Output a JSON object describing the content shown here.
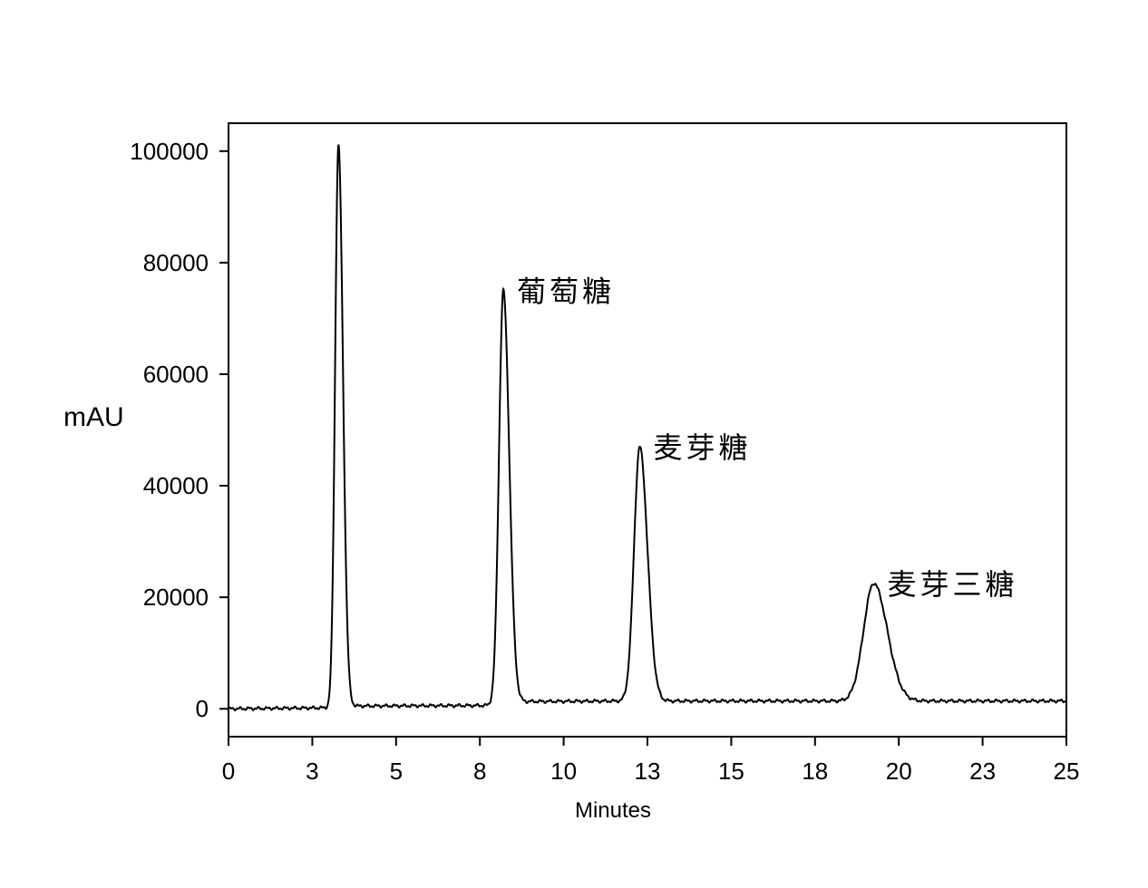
{
  "chart_data": {
    "type": "line",
    "title": "",
    "xlabel": "Minutes",
    "ylabel": "mAU",
    "xlim": [
      0,
      25
    ],
    "ylim": [
      -5000,
      105000
    ],
    "x_ticks": [
      {
        "value": 0,
        "label": "0"
      },
      {
        "value": 2.5,
        "label": "3"
      },
      {
        "value": 5,
        "label": "5"
      },
      {
        "value": 7.5,
        "label": "8"
      },
      {
        "value": 10,
        "label": "10"
      },
      {
        "value": 12.5,
        "label": "13"
      },
      {
        "value": 15,
        "label": "15"
      },
      {
        "value": 17.5,
        "label": "18"
      },
      {
        "value": 20,
        "label": "20"
      },
      {
        "value": 22.5,
        "label": "23"
      },
      {
        "value": 25,
        "label": "25"
      }
    ],
    "y_ticks": [
      {
        "value": 0,
        "label": "0"
      },
      {
        "value": 20000,
        "label": "20000"
      },
      {
        "value": 40000,
        "label": "40000"
      },
      {
        "value": 60000,
        "label": "60000"
      },
      {
        "value": 80000,
        "label": "80000"
      },
      {
        "value": 100000,
        "label": "100000"
      }
    ],
    "grid": false,
    "peaks": [
      {
        "x": 3.28,
        "y": 101000,
        "width": 0.1,
        "label": ""
      },
      {
        "x": 8.2,
        "y": 75000,
        "width": 0.13,
        "label": "葡萄糖"
      },
      {
        "x": 12.27,
        "y": 47000,
        "width": 0.17,
        "label": "麦芽糖"
      },
      {
        "x": 19.25,
        "y": 22500,
        "width": 0.3,
        "label": "麦芽三糖"
      }
    ],
    "baseline": [
      [
        0,
        0
      ],
      [
        3.2,
        200
      ],
      [
        3.6,
        500
      ],
      [
        8.0,
        600
      ],
      [
        8.6,
        1300
      ],
      [
        12.0,
        1400
      ],
      [
        25,
        1400
      ]
    ]
  }
}
